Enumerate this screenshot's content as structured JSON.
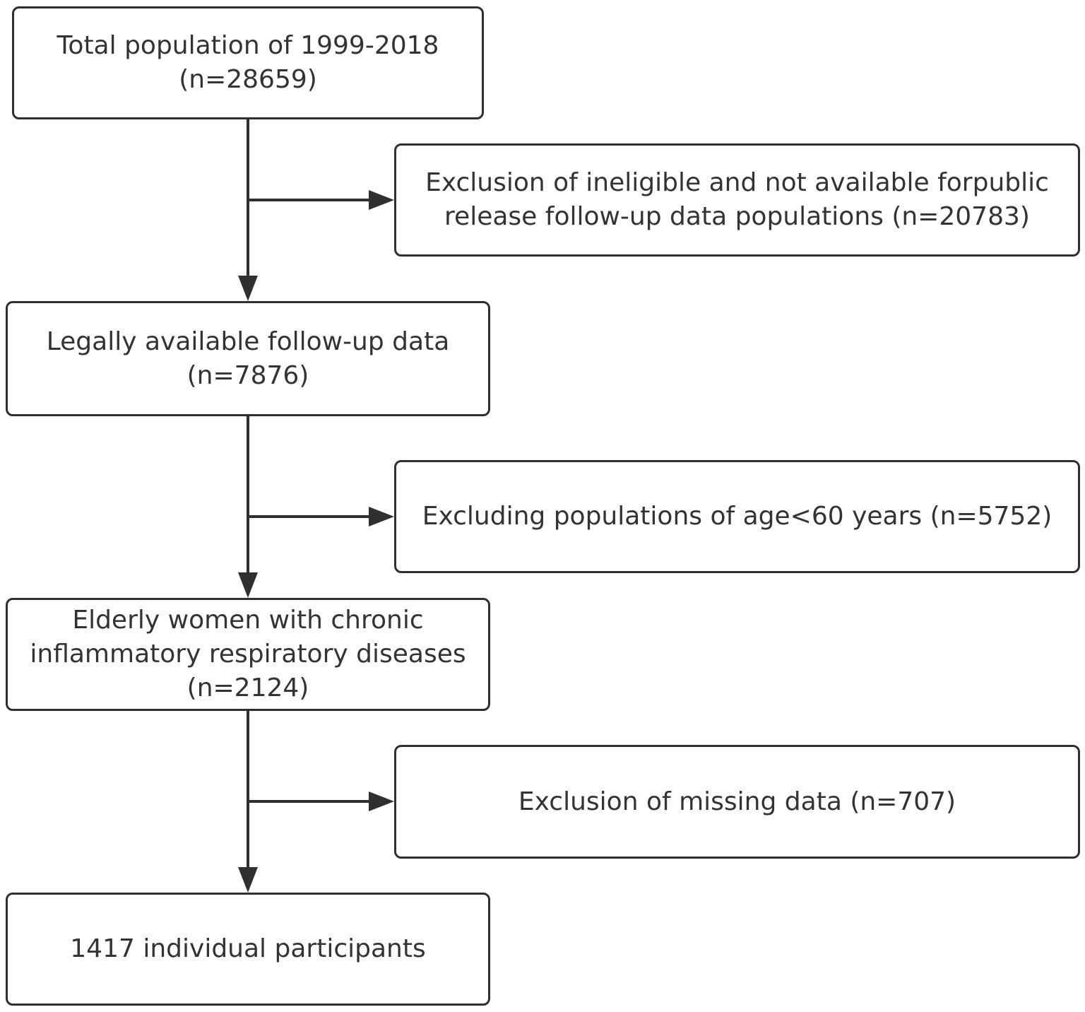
{
  "flowchart": {
    "total_population": {
      "line1": "Total population of 1999-2018",
      "line2": "(n=28659)"
    },
    "exclusion_ineligible": {
      "line1": "Exclusion of ineligible and not available forpublic",
      "line2": "release follow-up data populations (n=20783)"
    },
    "legally_available": {
      "line1": "Legally available follow-up data",
      "line2": "(n=7876)"
    },
    "exclusion_age": {
      "line1": "Excluding populations of age<60 years (n=5752)"
    },
    "elderly_women": {
      "line1": "Elderly women with chronic",
      "line2": "inflammatory respiratory diseases",
      "line3": "(n=2124)"
    },
    "exclusion_missing": {
      "line1": "Exclusion of missing data  (n=707)"
    },
    "final_participants": {
      "line1": "1417 individual participants"
    }
  },
  "colors": {
    "border": "#2f2f2f",
    "text": "#333333",
    "background": "#ffffff"
  }
}
